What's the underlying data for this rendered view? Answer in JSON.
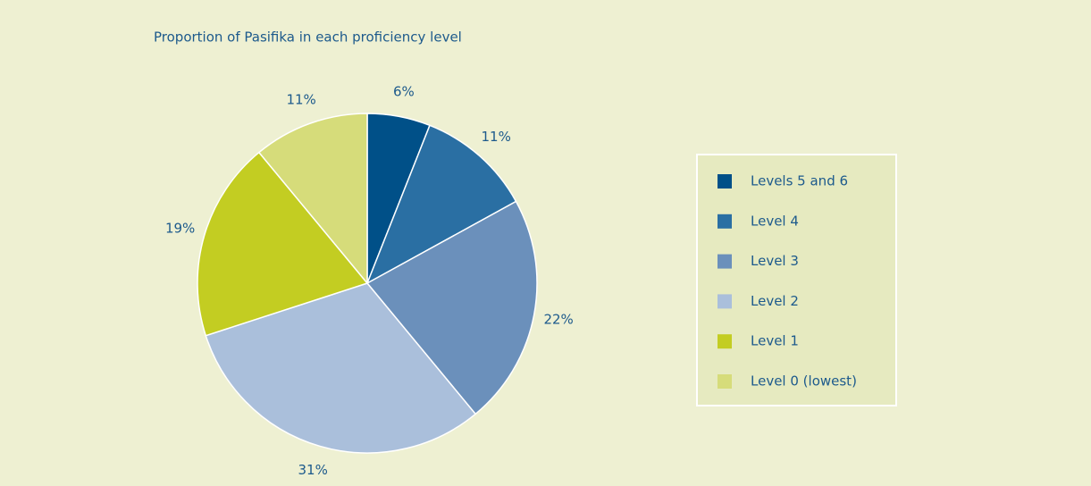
{
  "chart_data": {
    "type": "pie",
    "title": "Proportion of Pasifika in each proficiency level",
    "categories": [
      "Levels 5 and 6",
      "Level 4",
      "Level 3",
      "Level 2",
      "Level 1",
      "Level 0 (lowest)"
    ],
    "values": [
      6,
      11,
      22,
      31,
      19,
      11
    ],
    "value_labels": [
      "6%",
      "11%",
      "22%",
      "31%",
      "19%",
      "11%"
    ],
    "colors": [
      "#005088",
      "#2a6fa3",
      "#6b90bb",
      "#aabfdb",
      "#c3cd22",
      "#d6dc7a"
    ],
    "legend": "right"
  }
}
